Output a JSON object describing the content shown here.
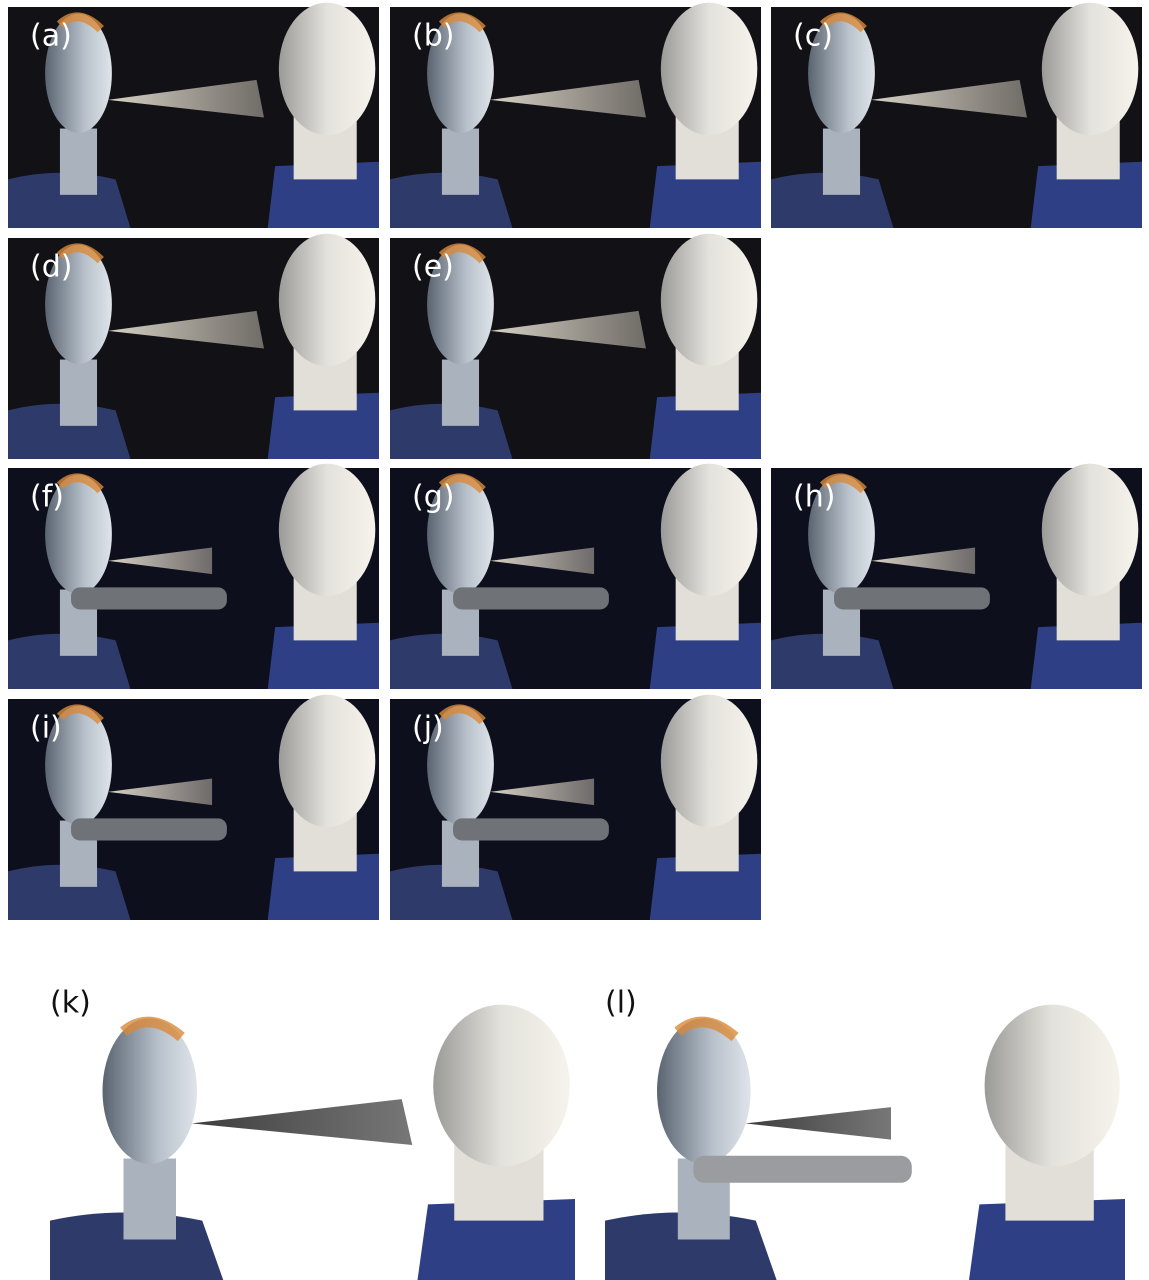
{
  "panels": [
    {
      "label": "(a)"
    },
    {
      "label": "(b)"
    },
    {
      "label": "(c)"
    },
    {
      "label": "(d)"
    },
    {
      "label": "(e)"
    },
    {
      "label": "(f)"
    },
    {
      "label": "(g)"
    },
    {
      "label": "(h)"
    },
    {
      "label": "(i)"
    },
    {
      "label": "(j)"
    },
    {
      "label": "(k)"
    },
    {
      "label": "(l)"
    }
  ]
}
